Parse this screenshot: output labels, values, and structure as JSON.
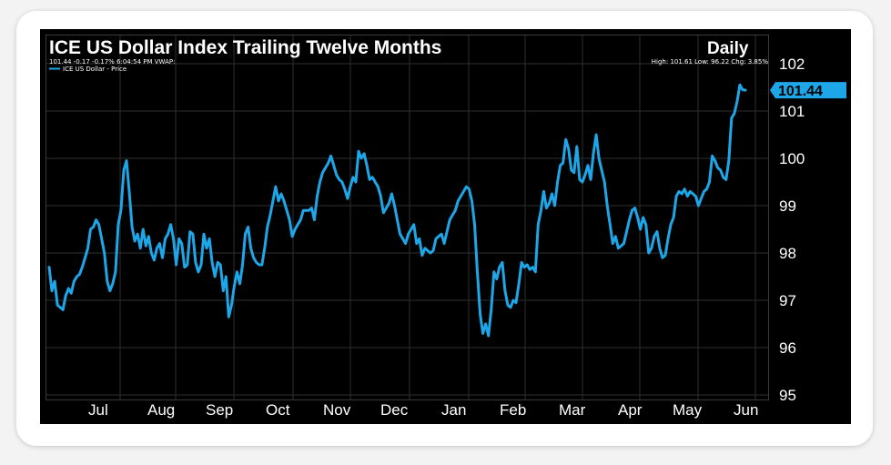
{
  "chart_data": {
    "type": "line",
    "title": "ICE US Dollar Index Trailing Twelve Months",
    "frequency": "Daily",
    "info_left": "101.44 -0.17 -0.17% 6:04:54 PM VWAP:",
    "info_right": "High: 101.61 Low: 96.22 Chg: 3.85%",
    "series": [
      {
        "name": "ICE US Dollar - Price",
        "color": "#1ea7e8",
        "values": [
          97.7,
          97.2,
          97.4,
          96.9,
          96.85,
          96.8,
          97.1,
          97.25,
          97.15,
          97.4,
          97.5,
          97.55,
          97.7,
          97.9,
          98.1,
          98.5,
          98.55,
          98.7,
          98.6,
          98.3,
          98.0,
          97.4,
          97.2,
          97.35,
          97.6,
          98.6,
          98.9,
          99.75,
          99.95,
          99.3,
          98.55,
          98.25,
          98.4,
          98.1,
          98.5,
          98.15,
          98.35,
          98.0,
          97.85,
          98.1,
          98.2,
          97.9,
          98.3,
          98.4,
          98.6,
          98.3,
          97.75,
          98.3,
          98.2,
          97.7,
          97.75,
          98.45,
          98.4,
          97.8,
          97.6,
          97.75,
          98.4,
          98.1,
          98.3,
          97.8,
          97.5,
          97.8,
          97.75,
          97.2,
          97.5,
          96.65,
          96.9,
          97.3,
          97.6,
          97.35,
          97.75,
          98.4,
          98.55,
          98.1,
          97.9,
          97.8,
          97.75,
          97.75,
          98.1,
          98.55,
          98.8,
          99.1,
          99.4,
          99.1,
          99.25,
          99.1,
          98.9,
          98.7,
          98.35,
          98.5,
          98.6,
          98.7,
          98.9,
          98.9,
          98.9,
          98.95,
          98.7,
          99.2,
          99.5,
          99.7,
          99.8,
          99.9,
          100.05,
          99.85,
          99.65,
          99.55,
          99.5,
          99.35,
          99.15,
          99.4,
          99.6,
          99.5,
          100.15,
          100.0,
          100.1,
          99.85,
          99.55,
          99.6,
          99.5,
          99.4,
          99.2,
          98.85,
          98.95,
          99.05,
          99.25,
          99.0,
          98.7,
          98.4,
          98.3,
          98.2,
          98.4,
          98.5,
          98.6,
          98.2,
          98.3,
          97.95,
          98.1,
          98.05,
          98.0,
          98.05,
          98.3,
          98.35,
          98.4,
          98.2,
          98.45,
          98.7,
          98.8,
          98.9,
          99.1,
          99.2,
          99.3,
          99.4,
          99.35,
          99.1,
          98.6,
          97.6,
          96.7,
          96.3,
          96.5,
          96.25,
          96.8,
          97.6,
          97.45,
          97.7,
          97.8,
          97.2,
          96.9,
          96.85,
          97.0,
          96.95,
          97.35,
          97.8,
          97.7,
          97.75,
          97.65,
          97.7,
          97.6,
          98.6,
          98.9,
          99.3,
          98.95,
          99.05,
          99.25,
          99.0,
          99.5,
          99.85,
          99.9,
          100.4,
          100.2,
          99.75,
          99.7,
          100.25,
          99.55,
          99.5,
          99.65,
          99.85,
          99.55,
          100.1,
          100.5,
          100.0,
          99.75,
          99.5,
          99.0,
          98.6,
          98.2,
          98.35,
          98.1,
          98.15,
          98.2,
          98.45,
          98.7,
          98.9,
          98.95,
          98.75,
          98.5,
          98.75,
          98.6,
          98.0,
          98.1,
          98.35,
          98.45,
          98.1,
          97.9,
          97.95,
          98.3,
          98.6,
          98.75,
          99.2,
          99.3,
          99.25,
          99.35,
          99.2,
          99.3,
          99.25,
          99.2,
          99.0,
          99.15,
          99.3,
          99.35,
          99.5,
          100.05,
          99.95,
          99.8,
          99.75,
          99.6,
          99.55,
          99.95,
          100.85,
          100.95,
          101.2,
          101.55,
          101.45,
          101.44
        ]
      }
    ],
    "x_tick_labels": [
      "Jul",
      "Aug",
      "Sep",
      "Oct",
      "Nov",
      "Dec",
      "Jan",
      "Feb",
      "Mar",
      "Apr",
      "May",
      "Jun"
    ],
    "y_ticks": [
      95,
      96,
      97,
      98,
      99,
      100,
      101,
      102
    ],
    "ylim": [
      95,
      102.3
    ],
    "last_value_label": "101.44",
    "grid": true,
    "legend_position": "top-left",
    "colors": {
      "background": "#000000",
      "line": "#1ea7e8",
      "grid": "#2f2f2f",
      "text": "#ffffff",
      "page": "#f3f3f3",
      "card": "#ffffff"
    }
  }
}
